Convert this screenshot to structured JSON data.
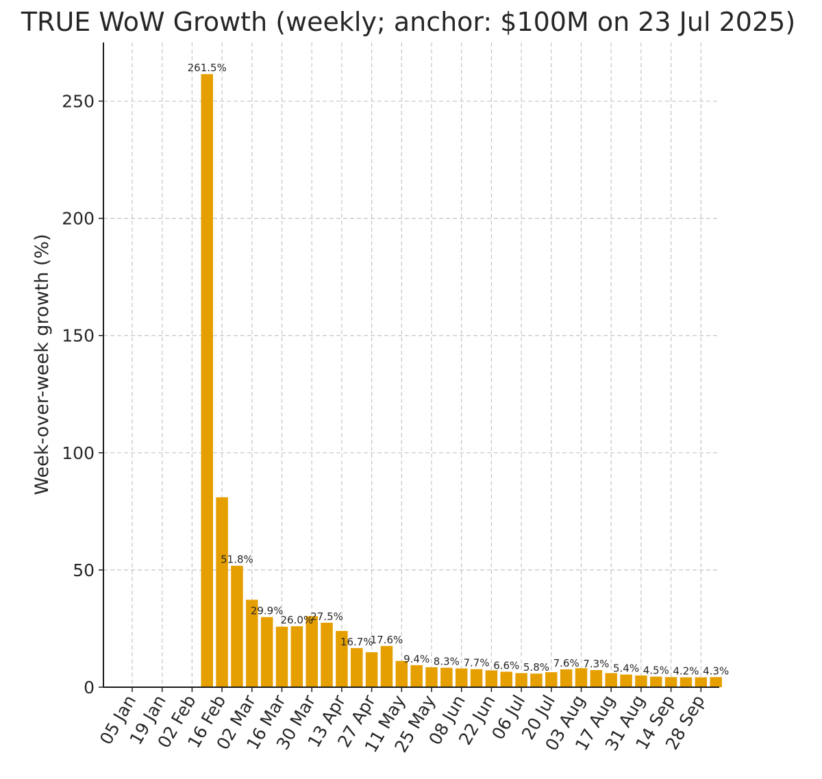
{
  "chart_data": {
    "type": "bar",
    "title": "TRUE WoW Growth (weekly; anchor: $100M on 23 Jul 2025)",
    "xlabel": "",
    "ylabel": "Week-over-week growth (%)",
    "ylim": [
      0,
      275
    ],
    "yticks": [
      0,
      50,
      100,
      150,
      200,
      250
    ],
    "grid": true,
    "color": "#E69F00",
    "x_tick_labels": [
      "05 Jan",
      "19 Jan",
      "02 Feb",
      "16 Feb",
      "02 Mar",
      "16 Mar",
      "30 Mar",
      "13 Apr",
      "27 Apr",
      "11 May",
      "25 May",
      "08 Jun",
      "22 Jun",
      "06 Jul",
      "20 Jul",
      "03 Aug",
      "17 Aug",
      "31 Aug",
      "14 Sep",
      "28 Sep"
    ],
    "categories": [
      "05 Jan",
      "12 Jan",
      "19 Jan",
      "26 Jan",
      "02 Feb",
      "09 Feb",
      "16 Feb",
      "23 Feb",
      "02 Mar",
      "09 Mar",
      "16 Mar",
      "23 Mar",
      "30 Mar",
      "06 Apr",
      "13 Apr",
      "20 Apr",
      "27 Apr",
      "04 May",
      "11 May",
      "18 May",
      "25 May",
      "01 Jun",
      "08 Jun",
      "15 Jun",
      "22 Jun",
      "29 Jun",
      "06 Jul",
      "13 Jul",
      "20 Jul",
      "27 Jul",
      "03 Aug",
      "10 Aug",
      "17 Aug",
      "24 Aug",
      "31 Aug",
      "07 Sep",
      "14 Sep",
      "21 Sep",
      "28 Sep",
      "05 Oct"
    ],
    "values": [
      null,
      null,
      null,
      null,
      null,
      261.5,
      81.0,
      51.8,
      37.3,
      29.9,
      25.8,
      26.0,
      30.3,
      27.5,
      24.0,
      16.7,
      14.9,
      17.6,
      11.2,
      9.4,
      8.5,
      8.3,
      8.0,
      7.7,
      7.2,
      6.6,
      6.0,
      5.8,
      6.4,
      7.6,
      8.1,
      7.3,
      6.0,
      5.4,
      5.0,
      4.5,
      4.3,
      4.2,
      4.2,
      4.3
    ],
    "data_labels": [
      {
        "index": 5,
        "text": "261.5%"
      },
      {
        "index": 7,
        "text": "51.8%"
      },
      {
        "index": 9,
        "text": "29.9%"
      },
      {
        "index": 11,
        "text": "26.0%"
      },
      {
        "index": 13,
        "text": "27.5%"
      },
      {
        "index": 15,
        "text": "16.7%"
      },
      {
        "index": 17,
        "text": "17.6%"
      },
      {
        "index": 19,
        "text": "9.4%"
      },
      {
        "index": 21,
        "text": "8.3%"
      },
      {
        "index": 23,
        "text": "7.7%"
      },
      {
        "index": 25,
        "text": "6.6%"
      },
      {
        "index": 27,
        "text": "5.8%"
      },
      {
        "index": 29,
        "text": "7.6%"
      },
      {
        "index": 31,
        "text": "7.3%"
      },
      {
        "index": 33,
        "text": "5.4%"
      },
      {
        "index": 35,
        "text": "4.5%"
      },
      {
        "index": 37,
        "text": "4.2%"
      },
      {
        "index": 39,
        "text": "4.3%"
      }
    ]
  }
}
